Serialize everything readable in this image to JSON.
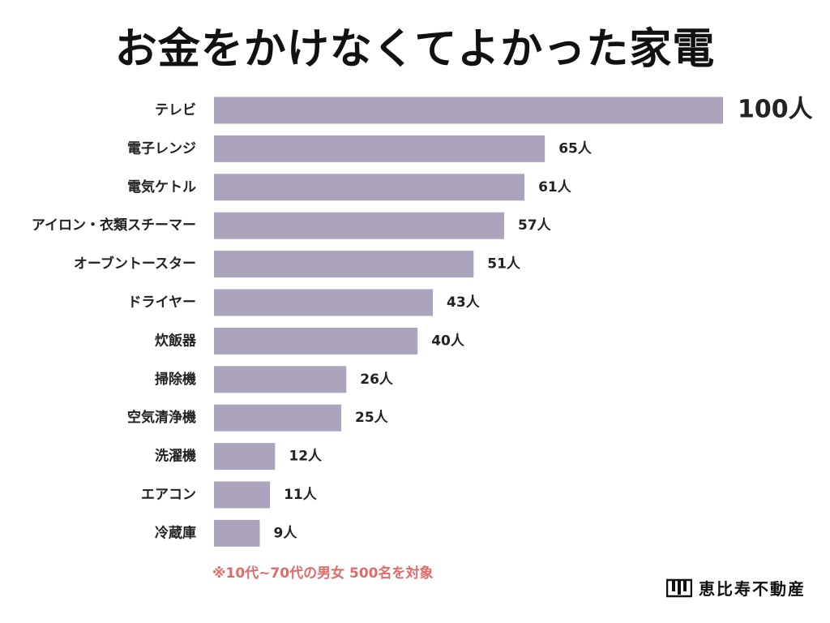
{
  "title": "お金をかけなくてよかった家電",
  "note": "※10代~70代の男女 500名を対象",
  "logo": {
    "text": "恵比寿不動産",
    "icon": "building-logo-icon"
  },
  "colors": {
    "bar": "#aca3bd",
    "note": "#e26a6a"
  },
  "chart_data": {
    "type": "bar",
    "orientation": "horizontal",
    "categories": [
      "テレビ",
      "電子レンジ",
      "電気ケトル",
      "アイロン・衣類スチーマー",
      "オーブントースター",
      "ドライヤー",
      "炊飯器",
      "掃除機",
      "空気清浄機",
      "洗濯機",
      "エアコン",
      "冷蔵庫"
    ],
    "values": [
      100,
      65,
      61,
      57,
      51,
      43,
      40,
      26,
      25,
      12,
      11,
      9
    ],
    "labels": [
      "100人",
      "65人",
      "61人",
      "57人",
      "51人",
      "43人",
      "40人",
      "26人",
      "25人",
      "12人",
      "11人",
      "9人"
    ],
    "xlim": [
      0,
      100
    ],
    "grid": false,
    "legend": "none"
  }
}
